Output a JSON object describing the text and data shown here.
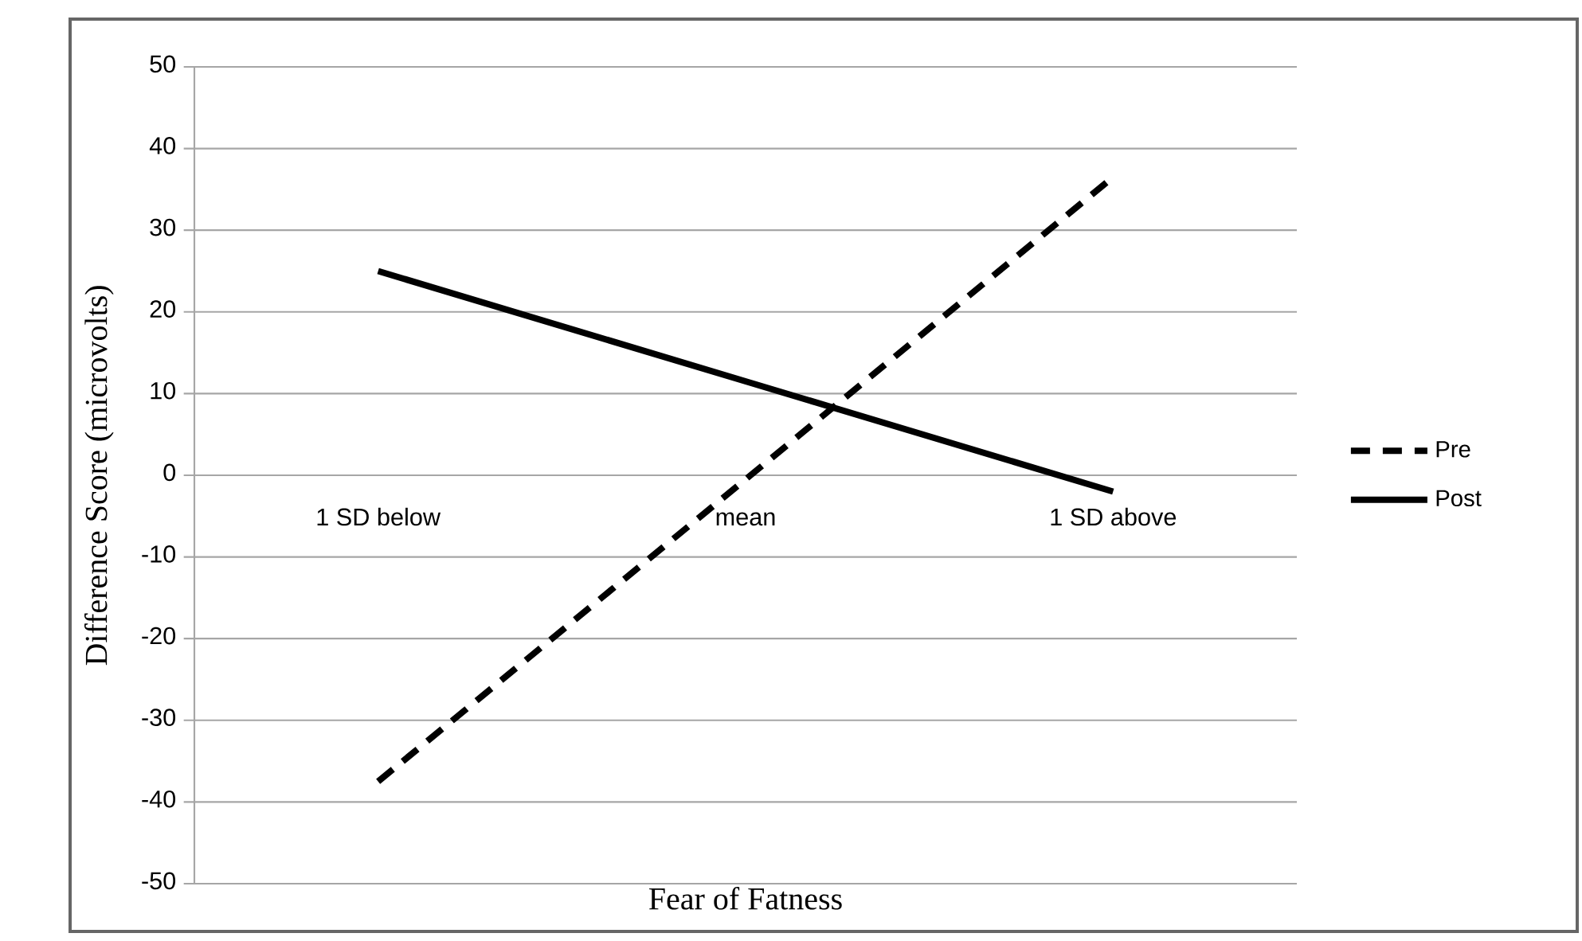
{
  "chart_data": {
    "type": "line",
    "xlabel": "Fear of Fatness",
    "ylabel": "Difference Score (microvolts)",
    "categories": [
      "1 SD below",
      "mean",
      "1 SD above"
    ],
    "series": [
      {
        "name": "Pre",
        "color": "#000000",
        "line_style": "dashed",
        "values": [
          -37.5,
          -0.5,
          36.5
        ]
      },
      {
        "name": "Post",
        "color": "#000000",
        "line_style": "solid",
        "values": [
          25,
          11.5,
          -2
        ]
      }
    ],
    "ylim": [
      -50,
      50
    ],
    "yticks": [
      -50,
      -40,
      -30,
      -20,
      -10,
      0,
      10,
      20,
      30,
      40,
      50
    ],
    "grid": "y",
    "legend": "right"
  }
}
